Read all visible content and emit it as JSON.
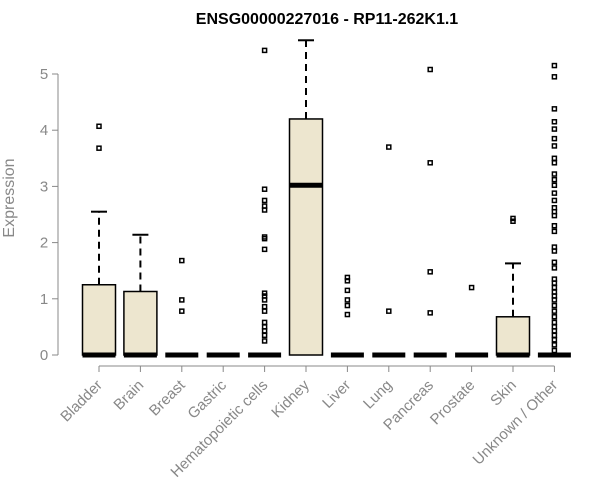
{
  "chart_data": {
    "type": "boxplot",
    "title": "ENSG00000227016 - RP11-262K1.1",
    "xlabel": "",
    "ylabel": "Expression",
    "ylim": [
      0,
      5.6
    ],
    "yticks": [
      0,
      1,
      2,
      3,
      4,
      5
    ],
    "grid": false,
    "legend": "none",
    "colors": {
      "box_fill": "#ede6cf",
      "stroke": "#000000",
      "axis_text": "#888888"
    },
    "categories": [
      "Bladder",
      "Brain",
      "Breast",
      "Gastric",
      "Hematopoietic cells",
      "Kidney",
      "Liver",
      "Lung",
      "Pancreas",
      "Prostate",
      "Skin",
      "Unknown / Other"
    ],
    "boxes": [
      {
        "category": "Bladder",
        "q1": 0,
        "median": 0,
        "q3": 1.25,
        "whisker_low": 0,
        "whisker_high": 2.55,
        "outliers": [
          3.68,
          4.07
        ]
      },
      {
        "category": "Brain",
        "q1": 0,
        "median": 0,
        "q3": 1.13,
        "whisker_low": 0,
        "whisker_high": 2.14,
        "outliers": []
      },
      {
        "category": "Breast",
        "q1": 0,
        "median": 0,
        "q3": 0,
        "whisker_low": 0,
        "whisker_high": 0,
        "outliers": [
          0.78,
          0.98,
          1.68
        ]
      },
      {
        "category": "Gastric",
        "q1": 0,
        "median": 0,
        "q3": 0,
        "whisker_low": 0,
        "whisker_high": 0,
        "outliers": []
      },
      {
        "category": "Hematopoietic cells",
        "q1": 0,
        "median": 0,
        "q3": 0,
        "whisker_low": 0,
        "whisker_high": 0,
        "outliers": [
          0.25,
          0.35,
          0.43,
          0.5,
          0.58,
          0.78,
          0.86,
          0.98,
          1.05,
          1.1,
          1.88,
          2.07,
          2.1,
          2.58,
          2.65,
          2.75,
          2.95,
          5.42
        ]
      },
      {
        "category": "Kidney",
        "q1": 0,
        "median": 3.02,
        "q3": 4.2,
        "whisker_low": 0,
        "whisker_high": 5.6,
        "outliers": []
      },
      {
        "category": "Liver",
        "q1": 0,
        "median": 0,
        "q3": 0,
        "whisker_low": 0,
        "whisker_high": 0,
        "outliers": [
          0.72,
          0.88,
          0.98,
          1.15,
          1.32,
          1.38
        ]
      },
      {
        "category": "Lung",
        "q1": 0,
        "median": 0,
        "q3": 0,
        "whisker_low": 0,
        "whisker_high": 0,
        "outliers": [
          0.78,
          3.7
        ]
      },
      {
        "category": "Pancreas",
        "q1": 0,
        "median": 0,
        "q3": 0,
        "whisker_low": 0,
        "whisker_high": 0,
        "outliers": [
          0.75,
          1.48,
          3.42,
          5.08
        ]
      },
      {
        "category": "Prostate",
        "q1": 0,
        "median": 0,
        "q3": 0,
        "whisker_low": 0,
        "whisker_high": 0,
        "outliers": [
          1.2
        ]
      },
      {
        "category": "Skin",
        "q1": 0,
        "median": 0,
        "q3": 0.68,
        "whisker_low": 0,
        "whisker_high": 1.63,
        "outliers": [
          2.38,
          2.43
        ]
      },
      {
        "category": "Unknown / Other",
        "q1": 0,
        "median": 0,
        "q3": 0,
        "whisker_low": 0,
        "whisker_high": 0,
        "outliers": [
          0.08,
          0.18,
          0.27,
          0.35,
          0.43,
          0.5,
          0.58,
          0.68,
          0.78,
          0.88,
          0.98,
          1.05,
          1.12,
          1.2,
          1.28,
          1.35,
          1.55,
          1.65,
          1.85,
          1.92,
          2.2,
          2.3,
          2.48,
          2.55,
          2.62,
          2.75,
          2.88,
          3.02,
          3.12,
          3.22,
          3.42,
          3.5,
          3.72,
          3.85,
          4.02,
          4.15,
          4.38,
          4.95,
          5.15
        ]
      }
    ]
  }
}
